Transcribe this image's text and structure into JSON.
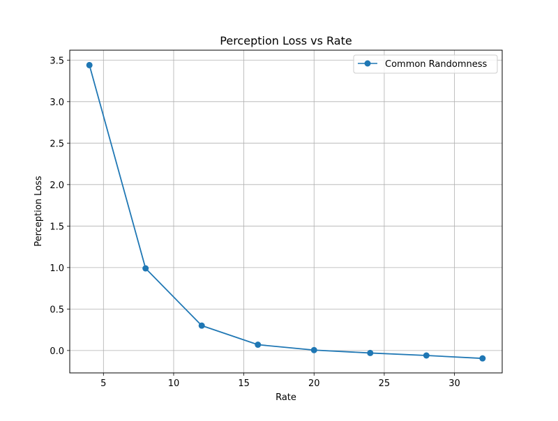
{
  "chart_data": {
    "type": "line",
    "title": "Perception Loss vs Rate",
    "xlabel": "Rate",
    "ylabel": "Perception Loss",
    "xlim": [
      2.6,
      33.4
    ],
    "ylim": [
      -0.27,
      3.62
    ],
    "x_ticks": [
      5,
      10,
      15,
      20,
      25,
      30
    ],
    "y_ticks": [
      0.0,
      0.5,
      1.0,
      1.5,
      2.0,
      2.5,
      3.0,
      3.5
    ],
    "grid": true,
    "legend_position": "top-right",
    "series": [
      {
        "name": "Common Randomness",
        "color": "#1f77b4",
        "marker": "circle",
        "x": [
          4,
          8,
          12,
          16,
          20,
          24,
          28,
          32
        ],
        "y": [
          3.44,
          0.99,
          0.3,
          0.07,
          0.005,
          -0.03,
          -0.06,
          -0.095
        ]
      }
    ]
  }
}
